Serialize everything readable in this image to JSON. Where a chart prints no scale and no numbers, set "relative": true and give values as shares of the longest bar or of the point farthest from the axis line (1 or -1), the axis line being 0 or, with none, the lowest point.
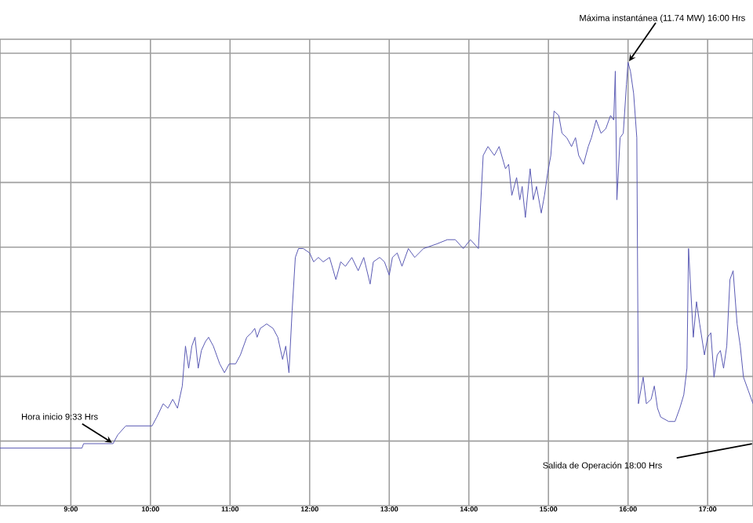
{
  "chart_data": {
    "type": "line",
    "relative": true,
    "color": "#5a5ab4",
    "grid": true,
    "tick_labels": "x",
    "xlim": [
      8.11,
      17.57
    ],
    "xticks": [
      {
        "value": 9,
        "label": "9:00"
      },
      {
        "value": 10,
        "label": "10:00"
      },
      {
        "value": 11,
        "label": "11:00"
      },
      {
        "value": 12,
        "label": "12:00"
      },
      {
        "value": 13,
        "label": "13:00"
      },
      {
        "value": 14,
        "label": "14:00"
      },
      {
        "value": 15,
        "label": "15:00"
      },
      {
        "value": 16,
        "label": "16:00"
      },
      {
        "value": 17,
        "label": "17:00"
      }
    ],
    "x": [
      8.11,
      9.14,
      9.16,
      9.53,
      9.59,
      9.69,
      9.89,
      10.02,
      10.08,
      10.16,
      10.22,
      10.28,
      10.34,
      10.4,
      10.44,
      10.48,
      10.52,
      10.56,
      10.6,
      10.64,
      10.69,
      10.73,
      10.79,
      10.87,
      10.93,
      10.99,
      11.07,
      11.13,
      11.21,
      11.27,
      11.31,
      11.34,
      11.38,
      11.46,
      11.54,
      11.6,
      11.66,
      11.7,
      11.74,
      11.78,
      11.82,
      11.86,
      11.92,
      12.0,
      12.05,
      12.11,
      12.17,
      12.25,
      12.33,
      12.39,
      12.45,
      12.53,
      12.61,
      12.68,
      12.76,
      12.8,
      12.88,
      12.94,
      13.0,
      13.04,
      13.1,
      13.16,
      13.24,
      13.32,
      13.43,
      13.59,
      13.73,
      13.83,
      13.93,
      14.02,
      14.12,
      14.18,
      14.24,
      14.32,
      14.38,
      14.46,
      14.5,
      14.54,
      14.6,
      14.64,
      14.67,
      14.71,
      14.77,
      14.81,
      14.85,
      14.91,
      14.95,
      14.99,
      15.03,
      15.07,
      15.13,
      15.17,
      15.23,
      15.29,
      15.34,
      15.38,
      15.44,
      15.5,
      15.54,
      15.6,
      15.66,
      15.72,
      15.78,
      15.82,
      15.84,
      15.86,
      15.9,
      15.94,
      15.98,
      16.0,
      16.03,
      16.07,
      16.11,
      16.13,
      16.19,
      16.23,
      16.29,
      16.33,
      16.37,
      16.41,
      16.51,
      16.59,
      16.65,
      16.7,
      16.74,
      16.76,
      16.82,
      16.86,
      16.9,
      16.96,
      17.0,
      17.04,
      17.08,
      17.12,
      17.16,
      17.2,
      17.24,
      17.28,
      17.32,
      17.37,
      17.41,
      17.45,
      17.51,
      17.57
    ],
    "values": [
      0.13,
      0.13,
      0.14,
      0.14,
      0.16,
      0.18,
      0.18,
      0.18,
      0.2,
      0.23,
      0.22,
      0.24,
      0.22,
      0.27,
      0.36,
      0.31,
      0.36,
      0.38,
      0.31,
      0.35,
      0.37,
      0.38,
      0.36,
      0.32,
      0.3,
      0.32,
      0.32,
      0.34,
      0.38,
      0.39,
      0.4,
      0.38,
      0.4,
      0.41,
      0.4,
      0.38,
      0.33,
      0.36,
      0.3,
      0.44,
      0.56,
      0.58,
      0.58,
      0.57,
      0.55,
      0.56,
      0.55,
      0.56,
      0.51,
      0.55,
      0.54,
      0.56,
      0.53,
      0.56,
      0.5,
      0.55,
      0.56,
      0.55,
      0.52,
      0.56,
      0.57,
      0.54,
      0.58,
      0.56,
      0.58,
      0.59,
      0.6,
      0.6,
      0.58,
      0.6,
      0.58,
      0.79,
      0.81,
      0.79,
      0.81,
      0.76,
      0.77,
      0.7,
      0.74,
      0.69,
      0.72,
      0.65,
      0.76,
      0.69,
      0.72,
      0.66,
      0.7,
      0.75,
      0.79,
      0.89,
      0.88,
      0.84,
      0.83,
      0.81,
      0.83,
      0.79,
      0.77,
      0.81,
      0.83,
      0.87,
      0.84,
      0.85,
      0.88,
      0.87,
      0.98,
      0.69,
      0.83,
      0.84,
      0.95,
      1.0,
      0.98,
      0.93,
      0.83,
      0.23,
      0.29,
      0.23,
      0.24,
      0.27,
      0.22,
      0.2,
      0.19,
      0.19,
      0.22,
      0.25,
      0.31,
      0.58,
      0.38,
      0.46,
      0.41,
      0.34,
      0.38,
      0.39,
      0.29,
      0.34,
      0.35,
      0.31,
      0.36,
      0.51,
      0.53,
      0.41,
      0.36,
      0.29,
      0.26,
      0.23
    ],
    "annotations": [
      {
        "text": "Hora inicio 9:33 Hrs",
        "x": 9.53,
        "y": 0.14
      },
      {
        "text": "Máxima instantánea (11.74 MW) 16:00 Hrs",
        "x": 16.0,
        "y": 1.0
      },
      "Salida de Operación 18:00 Hrs"
    ]
  }
}
